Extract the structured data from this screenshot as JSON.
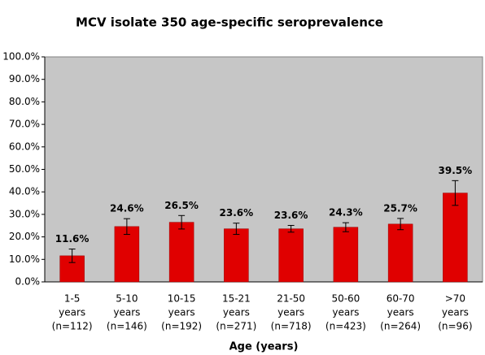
{
  "chart_data": {
    "type": "bar",
    "title": "MCV isolate 350 age-specific seroprevalence",
    "x_label": "Age (years)",
    "categories": [
      [
        "1-5",
        "years",
        "(n=112)"
      ],
      [
        "5-10",
        "years",
        "(n=146)"
      ],
      [
        "10-15",
        "years",
        "(n=192)"
      ],
      [
        "15-21",
        "years",
        "(n=271)"
      ],
      [
        "21-50",
        "years",
        "(n=718)"
      ],
      [
        "50-60",
        "years",
        "(n=423)"
      ],
      [
        "60-70",
        "years",
        "(n=264)"
      ],
      [
        ">70",
        "years",
        "(n=96)"
      ]
    ],
    "values": [
      11.6,
      24.6,
      26.5,
      23.6,
      23.6,
      24.3,
      25.7,
      39.5
    ],
    "value_labels": [
      "11.6%",
      "24.6%",
      "26.5%",
      "23.6%",
      "23.6%",
      "24.3%",
      "25.7%",
      "39.5%"
    ],
    "errors": [
      3.0,
      3.5,
      3.0,
      2.5,
      1.5,
      2.0,
      2.5,
      5.5
    ],
    "color": "#e00000",
    "ylim": [
      0,
      100
    ],
    "yticks": [
      {
        "value": 0,
        "label": "0.0%"
      },
      {
        "value": 10,
        "label": "10.0%"
      },
      {
        "value": 20,
        "label": "20.0%"
      },
      {
        "value": 30,
        "label": "30.0%"
      },
      {
        "value": 40,
        "label": "40.0%"
      },
      {
        "value": 50,
        "label": "50.0%"
      },
      {
        "value": 60,
        "label": "60.0%"
      },
      {
        "value": 70,
        "label": "70.0%"
      },
      {
        "value": 80,
        "label": "80.0%"
      },
      {
        "value": 90,
        "label": "90.0%"
      },
      {
        "value": 100,
        "label": "100.0%"
      }
    ],
    "grid": false,
    "plot_background": "#c6c6c6"
  }
}
